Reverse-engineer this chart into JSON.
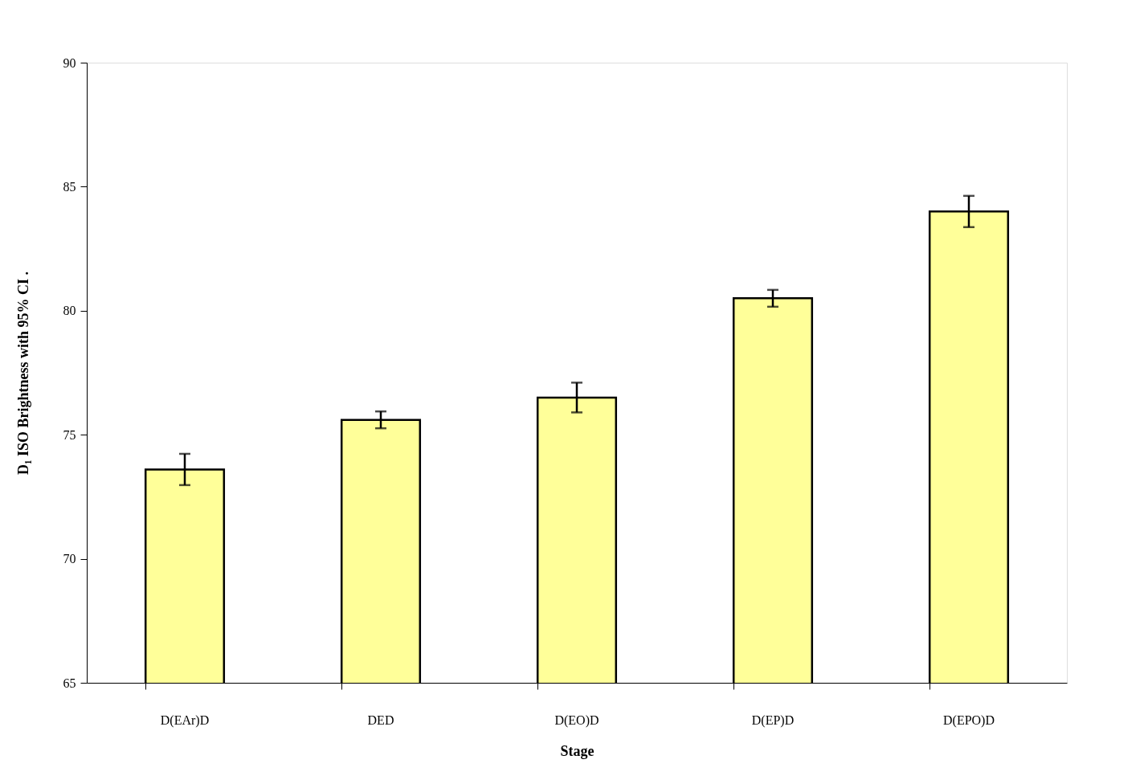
{
  "chart_data": {
    "type": "bar",
    "xlabel": "Stage",
    "ylabel": "D₁ ISO Brightness with 95% CI   .",
    "categories": [
      "D(EAr)D",
      "DED",
      "D(EO)D",
      "D(EP)D",
      "D(EPO)D"
    ],
    "values": [
      73.6,
      75.6,
      76.5,
      80.5,
      84.0
    ],
    "errors": [
      0.63,
      0.34,
      0.6,
      0.34,
      0.63
    ],
    "color": "#ffff99",
    "ylim": [
      65,
      90
    ],
    "yticks": [
      65,
      70,
      75,
      80,
      85,
      90
    ],
    "grid": false
  }
}
